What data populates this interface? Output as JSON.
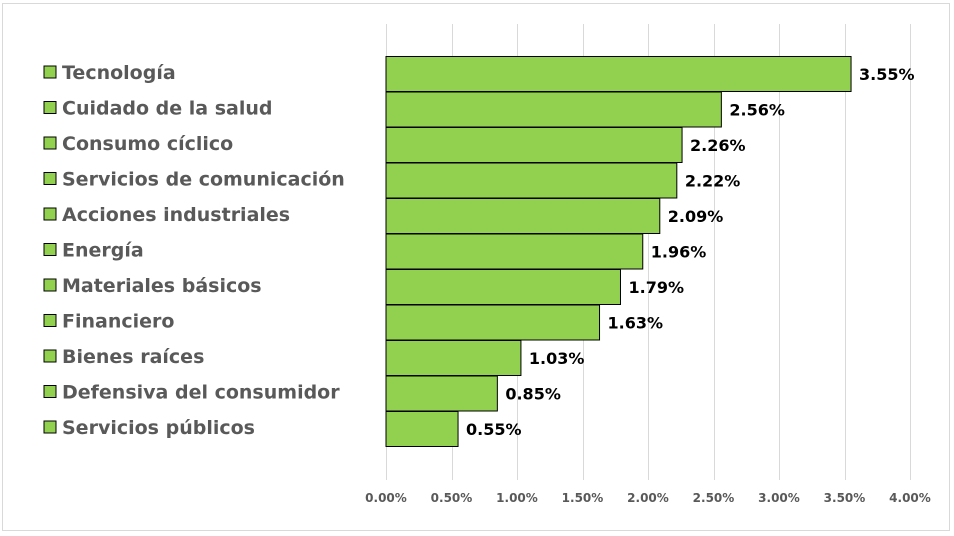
{
  "chart_data": {
    "type": "bar",
    "orientation": "horizontal",
    "categories": [
      "Tecnología",
      "Cuidado de la salud",
      "Consumo cíclico",
      "Servicios de comunicación",
      "Acciones industriales",
      "Energía",
      "Materiales básicos",
      "Financiero",
      "Bienes raíces",
      "Defensiva del consumidor",
      "Servicios públicos"
    ],
    "values": [
      3.55,
      2.56,
      2.26,
      2.22,
      2.09,
      1.96,
      1.79,
      1.63,
      1.03,
      0.85,
      0.55
    ],
    "value_labels": [
      "3.55%",
      "2.56%",
      "2.26%",
      "2.22%",
      "2.09%",
      "1.96%",
      "1.79%",
      "1.63%",
      "1.03%",
      "0.85%",
      "0.55%"
    ],
    "xlim": [
      0,
      4
    ],
    "x_ticks": [
      0,
      0.5,
      1,
      1.5,
      2,
      2.5,
      3,
      3.5,
      4
    ],
    "x_tick_labels": [
      "0.00%",
      "0.50%",
      "1.00%",
      "1.50%",
      "2.00%",
      "2.50%",
      "3.00%",
      "3.50%",
      "4.00%"
    ],
    "title": "",
    "xlabel": "",
    "ylabel": "",
    "grid": "vertical",
    "legend_position": "left",
    "bar_color": "#92d050",
    "bar_border_color": "#000000"
  }
}
